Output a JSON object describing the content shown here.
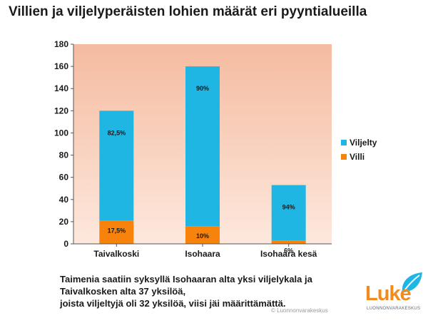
{
  "title": "Villien ja viljelyperäisten lohien määrät eri pyyntialueilla",
  "caption_lines": [
    "Taimenia saatiin syksyllä Isohaaran alta yksi viljelykala ja",
    "Taivalkosken alta 37 yksilöä,",
    "joista viljeltyjä oli 32 yksilöä, viisi jäi määrittämättä."
  ],
  "copyright": "© Luonnonvarakeskus",
  "logo": {
    "word": "Luke",
    "sub": "LUONNONVARAKESKUS"
  },
  "colors": {
    "viljelty": "#1fb6e3",
    "villi": "#f7830c",
    "plot_bg_top": "#f5bba0",
    "plot_bg_bottom": "#fde8dd"
  },
  "chart_data": {
    "type": "bar",
    "stacked": true,
    "categories": [
      "Taivalkoski",
      "Isohaara",
      "Isohaara kesä"
    ],
    "series": [
      {
        "name": "Villi",
        "values": [
          21,
          16,
          3
        ],
        "labels": [
          "17,5%",
          "10%",
          "6%"
        ]
      },
      {
        "name": "Viljelty",
        "values": [
          99,
          144,
          50
        ],
        "labels": [
          "82,5%",
          "90%",
          "94%"
        ]
      }
    ],
    "ylim": [
      0,
      180
    ],
    "yticks": [
      0,
      20,
      40,
      60,
      80,
      100,
      120,
      140,
      160,
      180
    ],
    "legend_position": "right",
    "legend": [
      "Viljelty",
      "Villi"
    ],
    "grid": false
  }
}
